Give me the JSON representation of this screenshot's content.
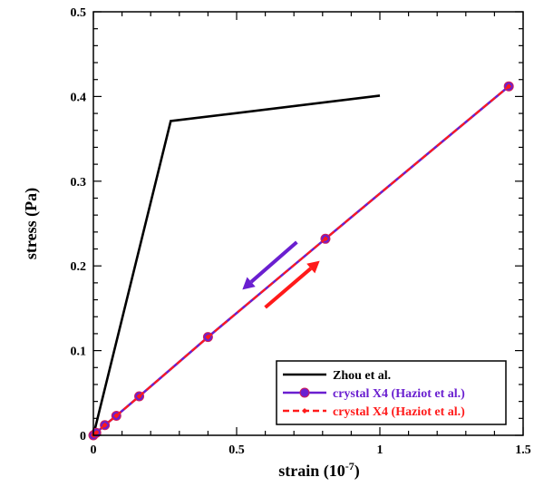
{
  "chart_data": {
    "type": "line",
    "xlabel": "strain (10",
    "xlabel_exp": "-7",
    "xlabel_close": ")",
    "ylabel": "stress (Pa)",
    "xlim": [
      0,
      1.5
    ],
    "ylim": [
      0,
      0.5
    ],
    "x_ticks": [
      {
        "value": 0,
        "label": "0"
      },
      {
        "value": 0.5,
        "label": "0.5"
      },
      {
        "value": 1,
        "label": "1"
      },
      {
        "value": 1.5,
        "label": "1.5"
      }
    ],
    "y_ticks": [
      {
        "value": 0,
        "label": "0"
      },
      {
        "value": 0.1,
        "label": "0.1"
      },
      {
        "value": 0.2,
        "label": "0.2"
      },
      {
        "value": 0.3,
        "label": "0.3"
      },
      {
        "value": 0.4,
        "label": "0.4"
      },
      {
        "value": 0.5,
        "label": "0.5"
      }
    ],
    "grid": false,
    "legend_position": "bottom-right",
    "series": [
      {
        "name": "Zhou et al.",
        "color": "#000000",
        "style": "solid",
        "marker": "none",
        "points": [
          [
            0,
            0
          ],
          [
            0.27,
            0.371
          ],
          [
            1.0,
            0.401
          ]
        ]
      },
      {
        "name": "crystal X4 (Haziot et al.)",
        "color": "#6a1fd0",
        "style": "solid",
        "marker": "circle",
        "points": [
          [
            0,
            0
          ],
          [
            0.01,
            0.003
          ],
          [
            0.04,
            0.012
          ],
          [
            0.08,
            0.023
          ],
          [
            0.16,
            0.046
          ],
          [
            0.4,
            0.116
          ],
          [
            0.81,
            0.232
          ],
          [
            1.45,
            0.412
          ]
        ]
      },
      {
        "name": "crystal X4 (Haziot et al.)",
        "color": "#ff1a1a",
        "style": "dashed",
        "marker": "diamond",
        "points": [
          [
            0,
            0
          ],
          [
            0.01,
            0.003
          ],
          [
            0.04,
            0.012
          ],
          [
            0.08,
            0.023
          ],
          [
            0.16,
            0.046
          ],
          [
            0.4,
            0.116
          ],
          [
            0.81,
            0.232
          ],
          [
            1.45,
            0.412
          ]
        ]
      }
    ],
    "annotations": [
      {
        "type": "arrow",
        "color": "#6a1fd0",
        "from": [
          0.71,
          0.228
        ],
        "to": [
          0.52,
          0.172
        ]
      },
      {
        "type": "arrow",
        "color": "#ff1a1a",
        "from": [
          0.6,
          0.151
        ],
        "to": [
          0.79,
          0.206
        ]
      }
    ]
  }
}
